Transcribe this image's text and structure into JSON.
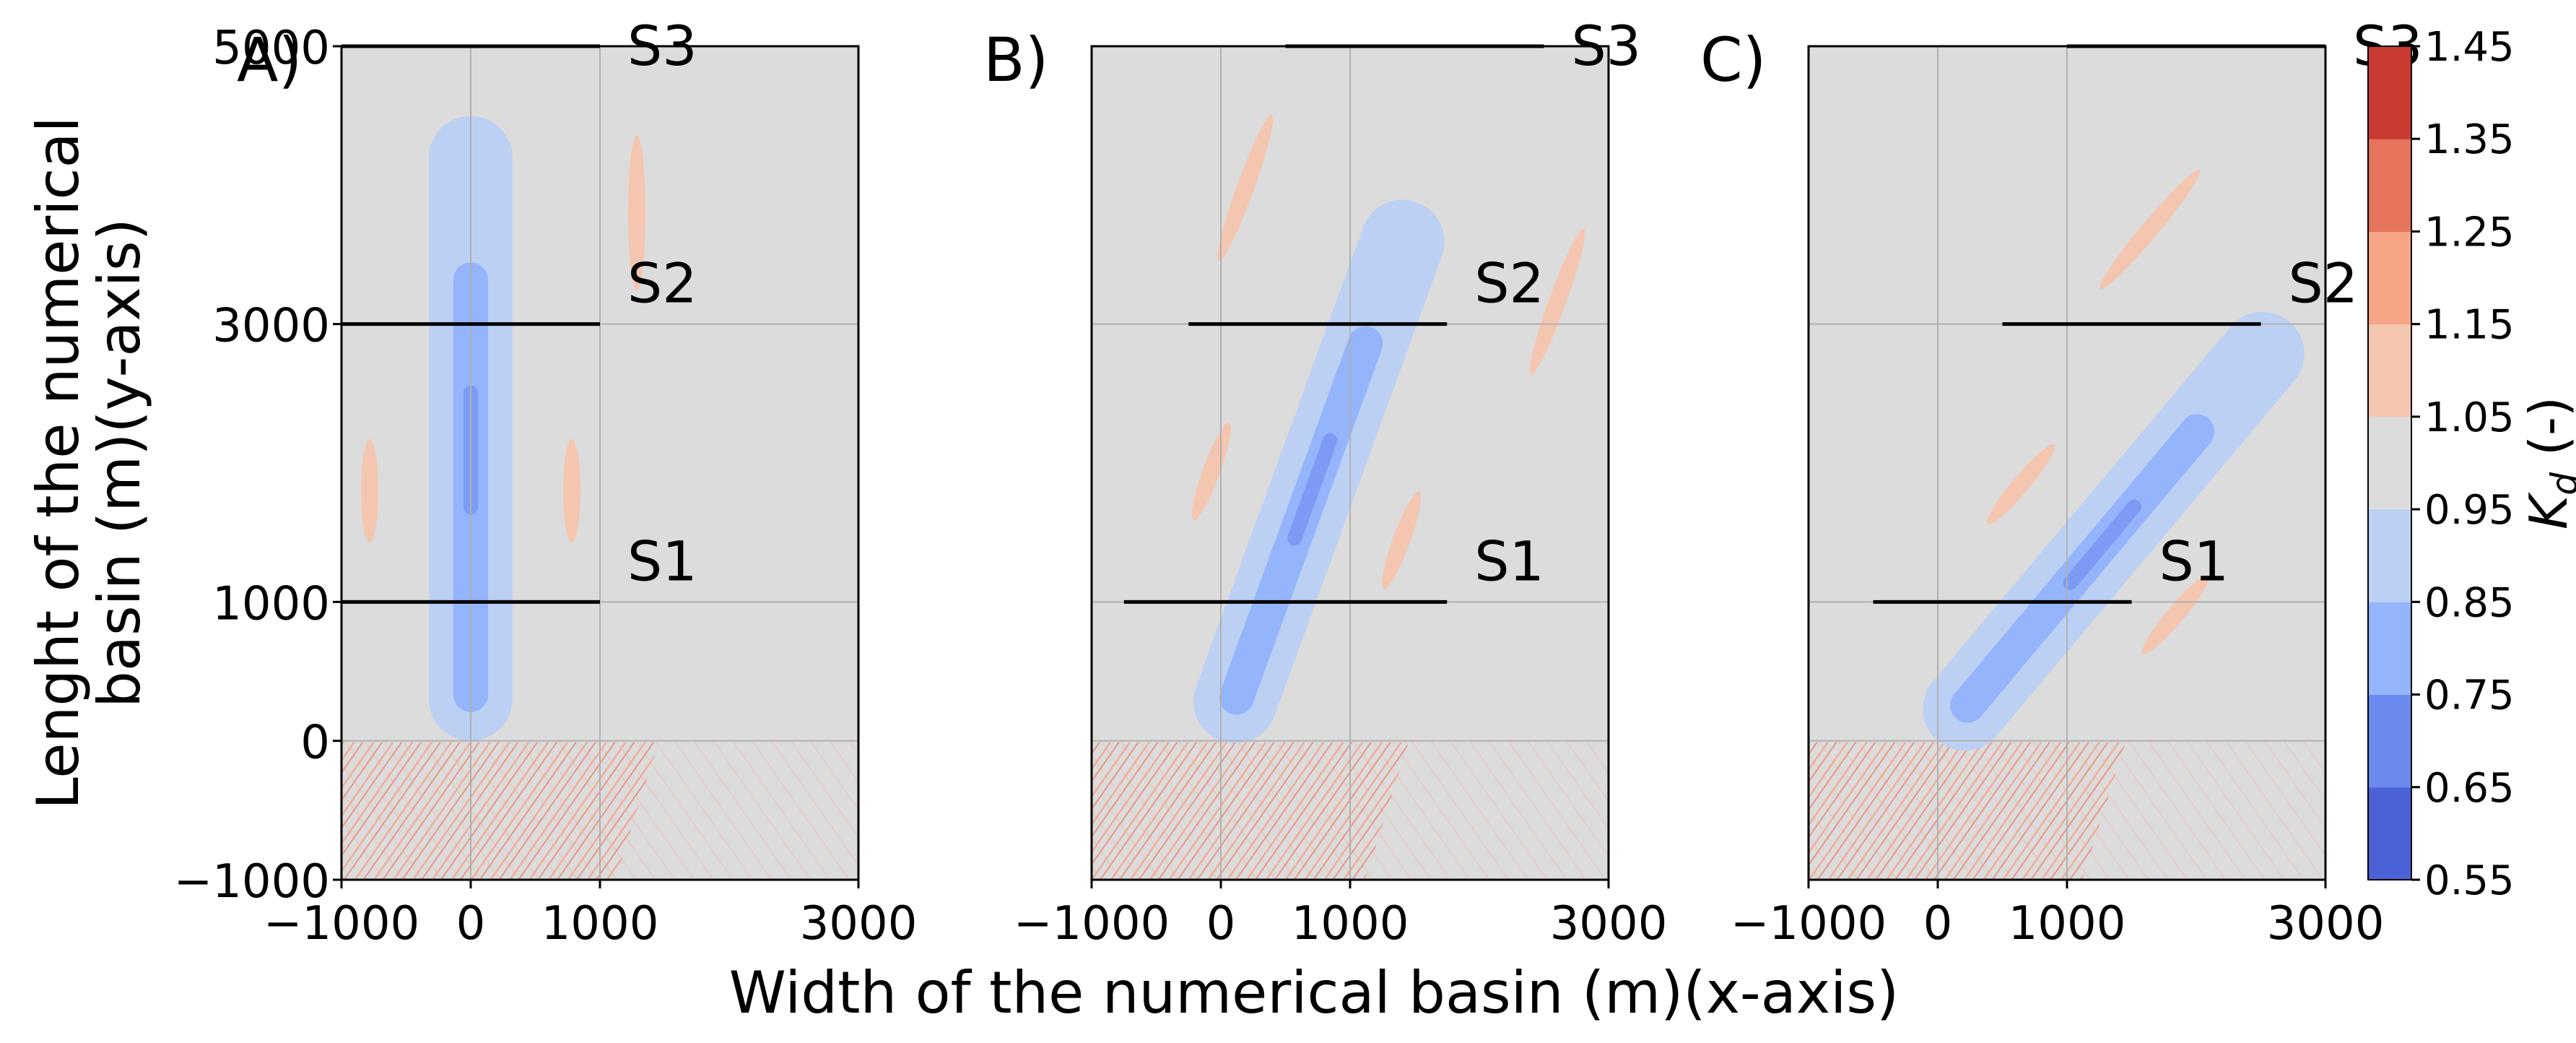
{
  "chart_data": {
    "type": "heatmap",
    "xlabel": "Width of the numerical basin (m)(x-axis)",
    "ylabel_lines": [
      "Lenght of the numerical",
      "basin (m)(y-axis)"
    ],
    "xlim": [
      -1000,
      3000
    ],
    "ylim": [
      -1000,
      5000
    ],
    "xticks": [
      -1000,
      0,
      1000,
      3000
    ],
    "xtick_labels": [
      "−1000",
      "0",
      "1000",
      "3000"
    ],
    "yticks": [
      -1000,
      0,
      1000,
      3000,
      5000
    ],
    "ytick_labels": [
      "−1000",
      "0",
      "1000",
      "3000",
      "5000"
    ],
    "grid": true,
    "panels": [
      {
        "label": "A)",
        "direction_deg": 0,
        "sections": [
          {
            "name": "S1",
            "x0": -1000,
            "x1": 1000,
            "y": 1000
          },
          {
            "name": "S2",
            "x0": -1000,
            "x1": 1000,
            "y": 3000
          },
          {
            "name": "S3",
            "x0": -1000,
            "x1": 1000,
            "y": 5000
          }
        ]
      },
      {
        "label": "B)",
        "direction_deg": 20,
        "sections": [
          {
            "name": "S1",
            "x0": -750,
            "x1": 1750,
            "y": 1000
          },
          {
            "name": "S2",
            "x0": -250,
            "x1": 1750,
            "y": 3000
          },
          {
            "name": "S3",
            "x0": 500,
            "x1": 2500,
            "y": 5000
          }
        ]
      },
      {
        "label": "C)",
        "direction_deg": 40,
        "sections": [
          {
            "name": "S1",
            "x0": -500,
            "x1": 1500,
            "y": 1000
          },
          {
            "name": "S2",
            "x0": 500,
            "x1": 2500,
            "y": 3000
          },
          {
            "name": "S3",
            "x0": 1000,
            "x1": 3000,
            "y": 5000
          }
        ]
      }
    ],
    "colorbar": {
      "label": "K_d (-)",
      "label_main": "K",
      "label_sub": "d",
      "label_suffix": " (-)",
      "levels": [
        0.55,
        0.65,
        0.75,
        0.85,
        0.95,
        1.05,
        1.15,
        1.25,
        1.35,
        1.45
      ],
      "tick_labels": [
        "0.55",
        "0.65",
        "0.75",
        "0.85",
        "0.95",
        "1.05",
        "1.15",
        "1.25",
        "1.35",
        "1.45"
      ],
      "colors": [
        "#4a62d6",
        "#6b8af0",
        "#94b4fb",
        "#bcd0f4",
        "#dcdcdc",
        "#f4c6b0",
        "#f5a486",
        "#e6745c",
        "#c83a32"
      ]
    }
  }
}
